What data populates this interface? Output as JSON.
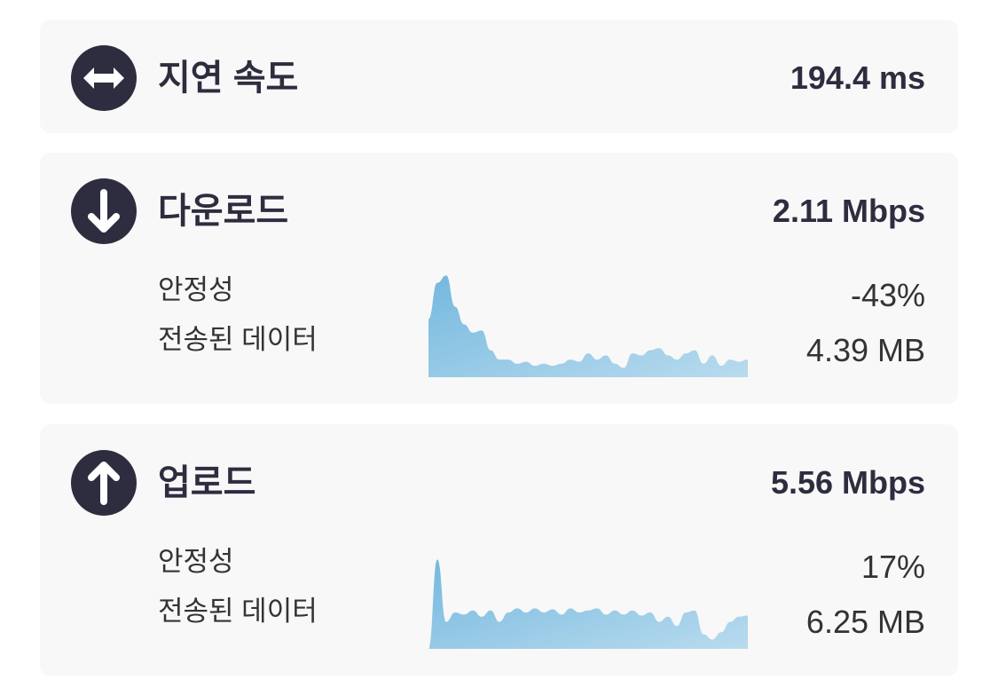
{
  "metrics": [
    {
      "title": "지연 속도",
      "value": "194.4 ms"
    },
    {
      "title": "다운로드",
      "value": "2.11 Mbps",
      "stability_label": "안정성",
      "stability": "-43%",
      "data_label": "전송된 데이터",
      "data": "4.39 MB",
      "sparkline": {
        "ylim": [
          0,
          100
        ],
        "values": [
          56,
          91,
          98,
          68,
          51,
          43,
          45,
          26,
          17,
          17,
          13,
          15,
          11,
          13,
          11,
          13,
          17,
          15,
          23,
          17,
          21,
          13,
          9,
          23,
          21,
          26,
          28,
          21,
          17,
          23,
          26,
          13,
          21,
          11,
          17,
          15,
          17
        ]
      }
    },
    {
      "title": "업로드",
      "value": "5.56 Mbps",
      "stability_label": "안정성",
      "stability": "17%",
      "data_label": "전송된 데이터",
      "data": "6.25 MB",
      "sparkline": {
        "ylim": [
          0,
          100
        ],
        "values": [
          0,
          86,
          26,
          35,
          33,
          37,
          31,
          37,
          26,
          35,
          39,
          35,
          39,
          35,
          38,
          33,
          39,
          35,
          37,
          39,
          33,
          37,
          33,
          37,
          32,
          35,
          26,
          31,
          22,
          35,
          37,
          14,
          9,
          16,
          26,
          31,
          32
        ]
      }
    }
  ]
}
